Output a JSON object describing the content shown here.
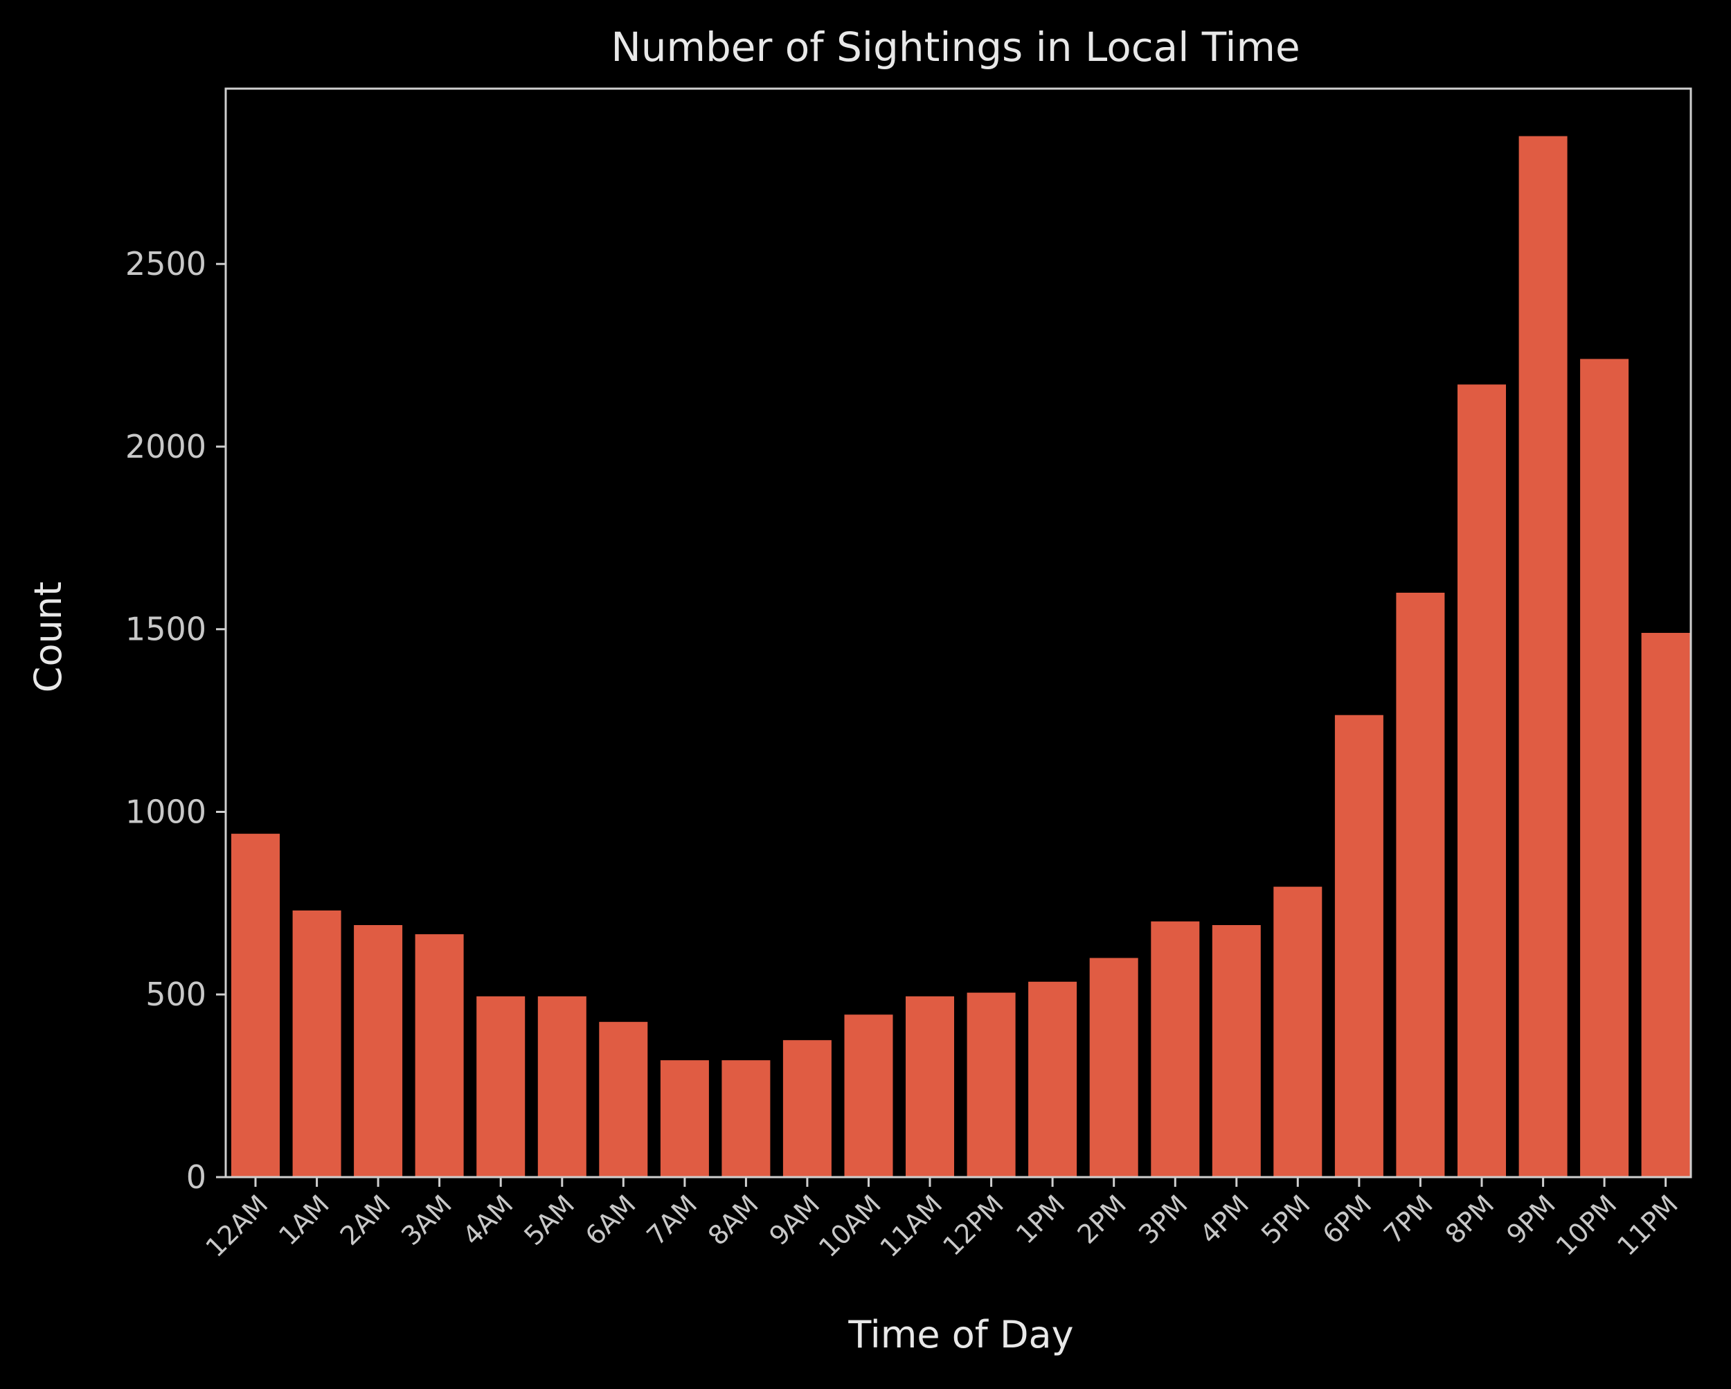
{
  "chart_data": {
    "type": "bar",
    "title": "Number of Sightings in Local Time",
    "xlabel": "Time of Day",
    "ylabel": "Count",
    "categories": [
      "12AM",
      "1AM",
      "2AM",
      "3AM",
      "4AM",
      "5AM",
      "6AM",
      "7AM",
      "8AM",
      "9AM",
      "10AM",
      "11AM",
      "12PM",
      "1PM",
      "2PM",
      "3PM",
      "4PM",
      "5PM",
      "6PM",
      "7PM",
      "8PM",
      "9PM",
      "10PM",
      "11PM"
    ],
    "values": [
      940,
      730,
      690,
      665,
      495,
      495,
      425,
      320,
      320,
      375,
      445,
      495,
      505,
      535,
      600,
      700,
      690,
      795,
      1265,
      1600,
      2170,
      2850,
      2240,
      1490
    ],
    "ylim": [
      0,
      2980
    ],
    "yticks": [
      0,
      500,
      1000,
      1500,
      2000,
      2500
    ],
    "grid": false,
    "legend": "none",
    "colors": {
      "bar": "#e05c43",
      "background": "#000000",
      "axes": "#cfcfcf",
      "text": "#e8e8e8"
    }
  }
}
